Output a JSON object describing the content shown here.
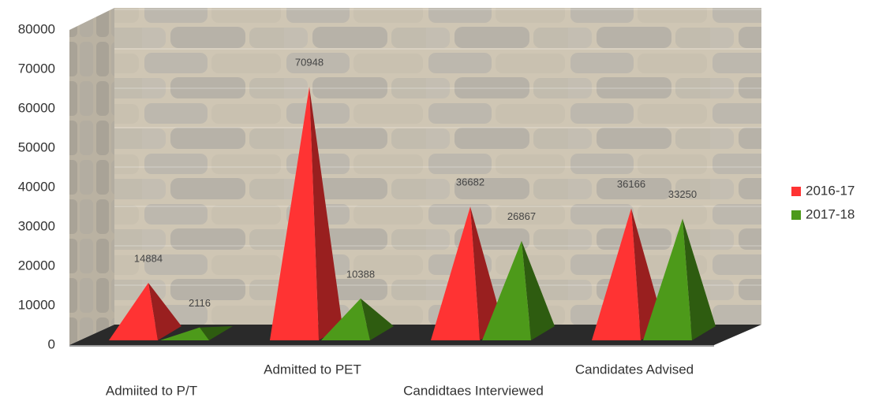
{
  "chart_data": {
    "type": "pyramid3d",
    "categories": [
      "Admiited to P/T",
      "Admitted to PET",
      "Candidtaes Interviewed",
      "Candidates Advised"
    ],
    "series": [
      {
        "name": "2016-17",
        "color": "#ff3333",
        "values": [
          14884,
          70948,
          36682,
          36166
        ]
      },
      {
        "name": "2017-18",
        "color": "#4d9a1a",
        "values": [
          2116,
          10388,
          26867,
          33250
        ]
      }
    ],
    "ylim": [
      0,
      80000
    ],
    "yticks": [
      0,
      10000,
      20000,
      30000,
      40000,
      50000,
      60000,
      70000,
      80000
    ],
    "grid": true,
    "legend": "right"
  }
}
